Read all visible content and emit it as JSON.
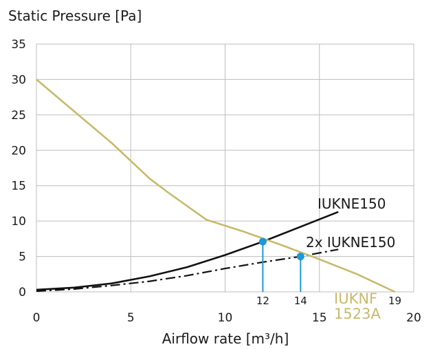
{
  "chart_data": {
    "type": "line",
    "ylabel": "Static Pressure [Pa]",
    "xlabel": "Airflow rate [m³/h]",
    "xlim": [
      0,
      20
    ],
    "ylim": [
      0,
      35
    ],
    "x_ticks": [
      "0",
      "5",
      "10",
      "15",
      "20"
    ],
    "y_ticks": [
      "0",
      "5",
      "10",
      "15",
      "20",
      "25",
      "30",
      "35"
    ],
    "grid": true,
    "colors": {
      "fan_curve": "#c8b96a",
      "system_curve": "#111111",
      "operating_point": "#1a9ad6",
      "grid": "#bdbdbd"
    },
    "series": [
      {
        "name": "IUKNE150",
        "style": "solid",
        "x": [
          0,
          2,
          4,
          6,
          8,
          10,
          12,
          14,
          16
        ],
        "y": [
          0.3,
          0.6,
          1.2,
          2.2,
          3.5,
          5.2,
          7.1,
          9.2,
          11.3
        ]
      },
      {
        "name": "2x IUKNE150",
        "style": "dashdot",
        "x": [
          0,
          2,
          4,
          6,
          8,
          10,
          12,
          14,
          16
        ],
        "y": [
          0.1,
          0.4,
          0.9,
          1.5,
          2.3,
          3.3,
          4.2,
          5.0,
          6.0
        ]
      },
      {
        "name": "IUKNF 1523A",
        "style": "solid",
        "x": [
          0,
          2,
          4,
          6,
          7,
          9,
          11,
          13,
          15,
          17,
          19
        ],
        "y": [
          30,
          25.5,
          21,
          16,
          14,
          10.2,
          8.5,
          6.6,
          4.6,
          2.5,
          0
        ]
      }
    ],
    "series_labels": {
      "single": "IUKNE150",
      "double": "2x IUKNE150",
      "fan_line1": "IUKNF",
      "fan_line2": "1523A",
      "fan_end_value": "19"
    },
    "operating_points": [
      {
        "x": 12,
        "y": 7.1,
        "label": "12"
      },
      {
        "x": 14,
        "y": 5.0,
        "label": "14"
      }
    ]
  }
}
